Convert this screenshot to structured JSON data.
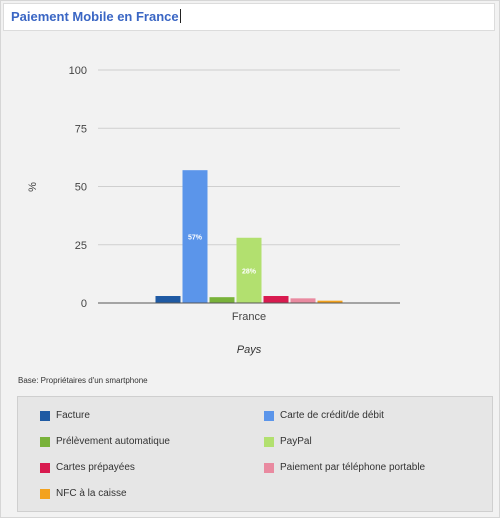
{
  "title": "Paiement Mobile en France",
  "base_note": "Base: Propriétaires d'un smartphone",
  "chart_data": {
    "type": "bar",
    "categories": [
      "France"
    ],
    "xlabel": "Pays",
    "ylabel": "%",
    "ylim": [
      0,
      100
    ],
    "yticks": [
      0,
      25,
      50,
      75,
      100
    ],
    "grid": true,
    "legend_position": "bottom",
    "series": [
      {
        "name": "Facture",
        "values": [
          3
        ],
        "color": "#1f5aa3",
        "label": ""
      },
      {
        "name": "Carte de crédit/de débit",
        "values": [
          57
        ],
        "color": "#5b95ea",
        "label": "57%"
      },
      {
        "name": "Prélèvement automatique",
        "values": [
          2.5
        ],
        "color": "#79b23a",
        "label": ""
      },
      {
        "name": "PayPal",
        "values": [
          28
        ],
        "color": "#b2e06f",
        "label": "28%"
      },
      {
        "name": "Cartes prépayées",
        "values": [
          3
        ],
        "color": "#d81b4f",
        "label": ""
      },
      {
        "name": "Paiement par téléphone portable",
        "values": [
          2
        ],
        "color": "#e98aa0",
        "label": ""
      },
      {
        "name": "NFC à la caisse",
        "values": [
          1
        ],
        "color": "#f3a21e",
        "label": ""
      }
    ]
  }
}
